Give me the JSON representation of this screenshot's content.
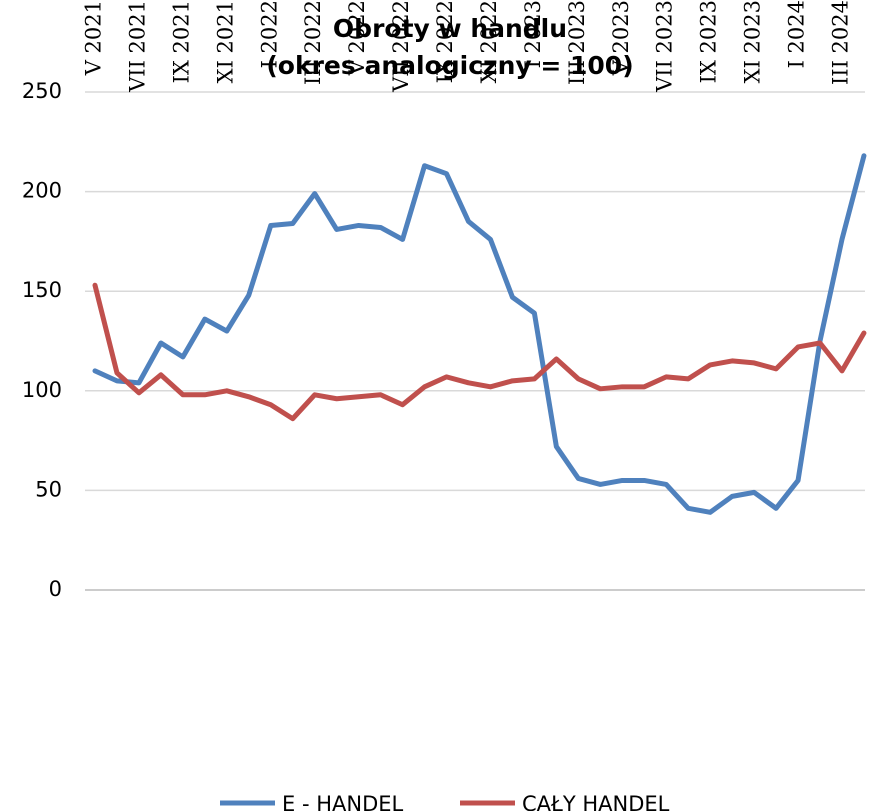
{
  "chart_data": {
    "type": "line",
    "title": "Obroty w handlu",
    "subtitle": "(okres analogiczny = 100)",
    "categories": [
      "V 2021",
      null,
      "VII 2021",
      null,
      "IX 2021",
      null,
      "XI 2021",
      null,
      "I 2022",
      null,
      "III 2022",
      null,
      "V 2022",
      null,
      "VII 2022",
      null,
      "IX 2022",
      null,
      "XI 2022",
      null,
      "I 2023",
      null,
      "III 2023",
      null,
      "V 2023",
      null,
      "VII 2023",
      null,
      "IX 2023",
      null,
      "XI 2023",
      null,
      "I 2024",
      null,
      "III 2024",
      null
    ],
    "series": [
      {
        "name": "E - HANDEL",
        "color": "#4f81bd",
        "values": [
          110,
          105,
          104,
          124,
          117,
          136,
          130,
          148,
          183,
          184,
          199,
          181,
          183,
          182,
          176,
          213,
          209,
          185,
          176,
          147,
          139,
          72,
          56,
          53,
          55,
          55,
          53,
          41,
          39,
          47,
          49,
          41,
          55,
          125,
          176,
          218
        ]
      },
      {
        "name": "CAŁY HANDEL",
        "color": "#c0504d",
        "values": [
          153,
          109,
          99,
          108,
          98,
          98,
          100,
          97,
          93,
          86,
          98,
          96,
          97,
          98,
          93,
          102,
          107,
          104,
          102,
          105,
          106,
          116,
          106,
          101,
          102,
          102,
          107,
          106,
          113,
          115,
          114,
          111,
          122,
          124,
          110,
          129
        ]
      }
    ],
    "ylim": [
      0,
      250
    ],
    "yticks": [
      0,
      50,
      100,
      150,
      200,
      250
    ],
    "grid": true,
    "legend": "bottom"
  }
}
